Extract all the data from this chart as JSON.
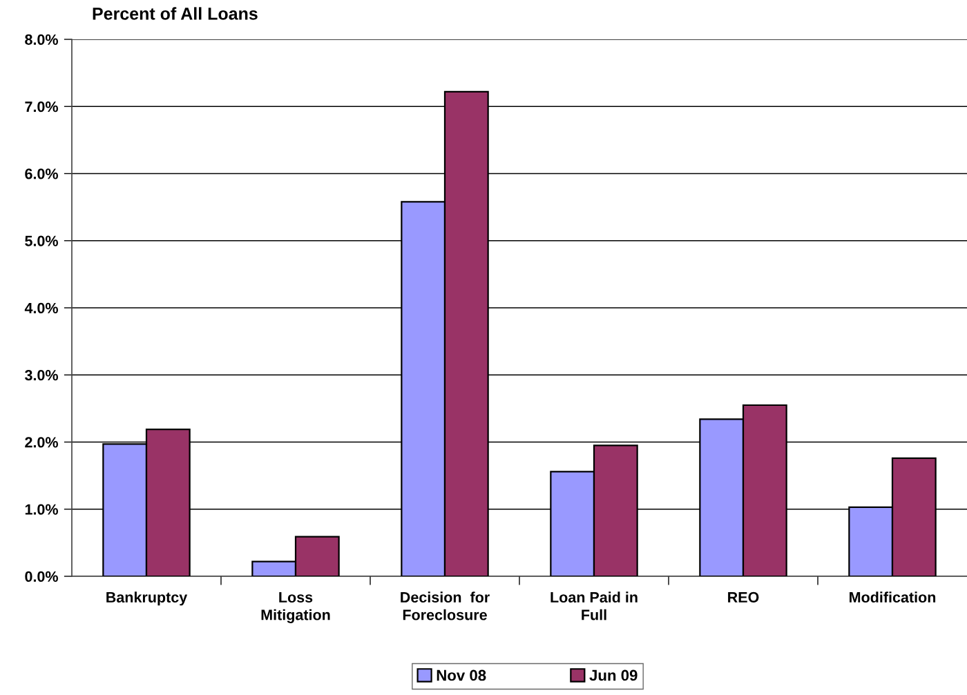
{
  "chart_data": {
    "type": "bar",
    "title": "Percent of All Loans",
    "categories": [
      "Bankruptcy",
      "Loss\nMitigation",
      "Decision  for\nForeclosure",
      "Loan Paid in\nFull",
      "REO",
      "Modification"
    ],
    "series": [
      {
        "name": "Nov 08",
        "color": "#9999ff",
        "values": [
          1.97,
          0.22,
          5.58,
          1.56,
          2.34,
          1.03
        ]
      },
      {
        "name": "Jun 09",
        "color": "#993366",
        "values": [
          2.19,
          0.59,
          7.22,
          1.95,
          2.55,
          1.76
        ]
      }
    ],
    "ylim": [
      0,
      8
    ],
    "yticks": [
      {
        "value": 0,
        "label": "0.0%"
      },
      {
        "value": 1,
        "label": "1.0%"
      },
      {
        "value": 2,
        "label": "2.0%"
      },
      {
        "value": 3,
        "label": "3.0%"
      },
      {
        "value": 4,
        "label": "4.0%"
      },
      {
        "value": 5,
        "label": "5.0%"
      },
      {
        "value": 6,
        "label": "6.0%"
      },
      {
        "value": 7,
        "label": "7.0%"
      },
      {
        "value": 8,
        "label": "8.0%"
      }
    ],
    "grid": "y",
    "legend": "bottom"
  }
}
